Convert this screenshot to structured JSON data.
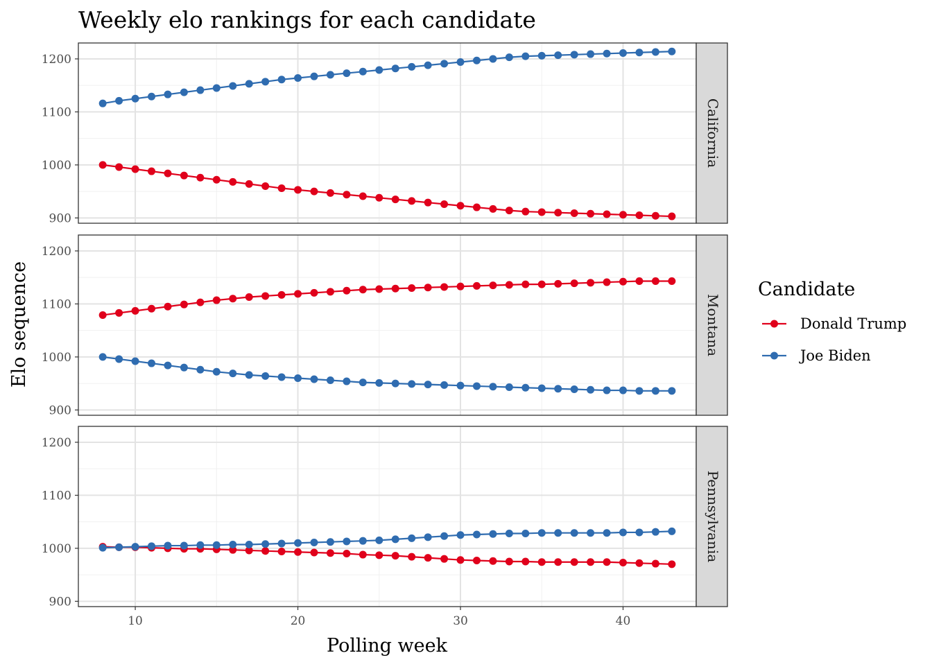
{
  "chart_data": {
    "type": "line",
    "title": "Weekly elo rankings for each candidate",
    "xlabel": "Polling week",
    "ylabel": "Elo sequence",
    "xlim": [
      6.5,
      44.5
    ],
    "ylim": [
      890,
      1230
    ],
    "x_ticks": [
      10,
      20,
      30,
      40
    ],
    "y_ticks": [
      900,
      1000,
      1100,
      1200
    ],
    "grid": true,
    "legend": {
      "title": "Candidate",
      "position": "right",
      "entries": [
        "Donald Trump",
        "Joe Biden"
      ]
    },
    "colors": {
      "Donald Trump": "#e0001b",
      "Joe Biden": "#2f6cb0"
    },
    "x": [
      8,
      9,
      10,
      11,
      12,
      13,
      14,
      15,
      16,
      17,
      18,
      19,
      20,
      21,
      22,
      23,
      24,
      25,
      26,
      27,
      28,
      29,
      30,
      31,
      32,
      33,
      34,
      35,
      36,
      37,
      38,
      39,
      40,
      41,
      42,
      43
    ],
    "facets": [
      {
        "label": "California",
        "series": [
          {
            "name": "Donald Trump",
            "values": [
              1000,
              996,
              992,
              988,
              984,
              980,
              976,
              972,
              968,
              964,
              960,
              956,
              953,
              950,
              947,
              944,
              941,
              938,
              935,
              932,
              929,
              926,
              923,
              920,
              917,
              914,
              912,
              911,
              910,
              909,
              908,
              907,
              906,
              905,
              904,
              903
            ]
          },
          {
            "name": "Joe Biden",
            "values": [
              1116,
              1121,
              1125,
              1129,
              1133,
              1137,
              1141,
              1145,
              1149,
              1153,
              1157,
              1161,
              1164,
              1167,
              1170,
              1173,
              1176,
              1179,
              1182,
              1185,
              1188,
              1191,
              1194,
              1197,
              1200,
              1203,
              1205,
              1206,
              1207,
              1208,
              1209,
              1210,
              1211,
              1212,
              1213,
              1214
            ]
          }
        ]
      },
      {
        "label": "Montana",
        "series": [
          {
            "name": "Donald Trump",
            "values": [
              1079,
              1083,
              1087,
              1091,
              1095,
              1099,
              1103,
              1107,
              1110,
              1113,
              1115,
              1117,
              1119,
              1121,
              1123,
              1125,
              1127,
              1128,
              1129,
              1130,
              1131,
              1132,
              1133,
              1134,
              1135,
              1136,
              1137,
              1137,
              1138,
              1139,
              1140,
              1141,
              1142,
              1143,
              1143,
              1143
            ]
          },
          {
            "name": "Joe Biden",
            "values": [
              1000,
              996,
              992,
              988,
              984,
              980,
              976,
              972,
              969,
              966,
              964,
              962,
              960,
              958,
              956,
              954,
              952,
              951,
              950,
              949,
              948,
              947,
              946,
              945,
              944,
              943,
              942,
              941,
              940,
              939,
              938,
              937,
              937,
              936,
              936,
              936
            ]
          }
        ]
      },
      {
        "label": "Pennsylvania",
        "series": [
          {
            "name": "Donald Trump",
            "values": [
              1003,
              1002,
              1002,
              1001,
              1000,
              999,
              999,
              998,
              997,
              996,
              995,
              994,
              993,
              992,
              991,
              990,
              988,
              987,
              986,
              984,
              982,
              980,
              978,
              977,
              976,
              975,
              975,
              974,
              974,
              974,
              974,
              974,
              973,
              972,
              971,
              970
            ]
          },
          {
            "name": "Joe Biden",
            "values": [
              1001,
              1002,
              1003,
              1004,
              1005,
              1005,
              1006,
              1006,
              1007,
              1007,
              1008,
              1009,
              1010,
              1011,
              1012,
              1013,
              1014,
              1015,
              1017,
              1019,
              1021,
              1023,
              1025,
              1026,
              1027,
              1028,
              1028,
              1029,
              1029,
              1029,
              1029,
              1029,
              1030,
              1030,
              1031,
              1032
            ]
          }
        ]
      }
    ]
  }
}
